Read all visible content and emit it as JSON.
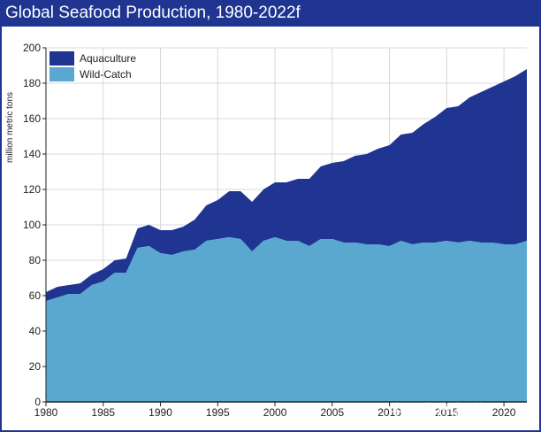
{
  "chart_data": {
    "type": "area",
    "title": "Global Seafood Production, 1980-2022f",
    "ylabel": "million metric tons",
    "xlabel": "",
    "x": [
      1980,
      1981,
      1982,
      1983,
      1984,
      1985,
      1986,
      1987,
      1988,
      1989,
      1990,
      1991,
      1992,
      1993,
      1994,
      1995,
      1996,
      1997,
      1998,
      1999,
      2000,
      2001,
      2002,
      2003,
      2004,
      2005,
      2006,
      2007,
      2008,
      2009,
      2010,
      2011,
      2012,
      2013,
      2014,
      2015,
      2016,
      2017,
      2018,
      2019,
      2020,
      2021,
      2022
    ],
    "series": [
      {
        "name": "Wild-Catch",
        "color": "#5aa7d0",
        "values": [
          57,
          59,
          61,
          61,
          66,
          68,
          73,
          73,
          87,
          88,
          84,
          83,
          85,
          86,
          91,
          92,
          93,
          92,
          85,
          91,
          93,
          91,
          91,
          88,
          92,
          92,
          90,
          90,
          89,
          89,
          88,
          91,
          89,
          90,
          90,
          91,
          90,
          91,
          90,
          90,
          89,
          89,
          91
        ]
      },
      {
        "name": "Aquaculture",
        "color": "#1f3591",
        "values": [
          5,
          6,
          5,
          6,
          6,
          7,
          7,
          8,
          11,
          12,
          13,
          14,
          14,
          17,
          20,
          22,
          26,
          27,
          28,
          29,
          31,
          33,
          35,
          38,
          41,
          43,
          46,
          49,
          51,
          54,
          57,
          60,
          63,
          67,
          71,
          75,
          77,
          81,
          85,
          88,
          92,
          95,
          97
        ]
      }
    ],
    "total": [
      62,
      65,
      66,
      67,
      72,
      75,
      80,
      81,
      98,
      100,
      97,
      97,
      99,
      103,
      111,
      114,
      119,
      119,
      113,
      120,
      124,
      124,
      126,
      126,
      133,
      135,
      136,
      139,
      140,
      143,
      145,
      151,
      152,
      157,
      161,
      166,
      167,
      172,
      175,
      178,
      181,
      184,
      188
    ],
    "xticks": [
      "1980",
      "1985",
      "1990",
      "1995",
      "2000",
      "2005",
      "2010",
      "2015",
      "2020"
    ],
    "xtick_values": [
      1980,
      1985,
      1990,
      1995,
      2000,
      2005,
      2010,
      2015,
      2020
    ],
    "yticks": [
      "0",
      "20",
      "40",
      "60",
      "80",
      "100",
      "120",
      "140",
      "160",
      "180",
      "200"
    ],
    "ytick_values": [
      0,
      20,
      40,
      60,
      80,
      100,
      120,
      140,
      160,
      180,
      200
    ],
    "xlim": [
      1980,
      2022
    ],
    "ylim": [
      0,
      200
    ],
    "grid": true,
    "legend": {
      "placement": "top-left",
      "entries": [
        "Aquaculture",
        "Wild-Catch"
      ]
    },
    "grid_color": "#d8d8d8",
    "background": "#ffffff"
  },
  "watermark": "中国水产频道"
}
